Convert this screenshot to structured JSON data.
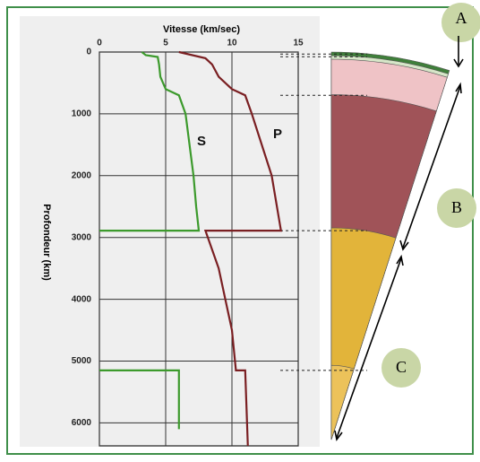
{
  "chart_data": {
    "type": "line",
    "title": "Vitesse (km/sec)",
    "y_label": "Profondeur (km)",
    "xlim": [
      0,
      15
    ],
    "ylim": [
      0,
      6371
    ],
    "y_inverted": true,
    "xticks": [
      0,
      5,
      10,
      15
    ],
    "yticks": [
      0,
      1000,
      2000,
      3000,
      4000,
      5000,
      6000
    ],
    "grid": true,
    "series": [
      {
        "name": "S",
        "color": "#3c9a2c",
        "x": [
          3.2,
          3.5,
          4.4,
          4.5,
          4.6,
          5.0,
          6.0,
          6.5,
          6.8,
          7.1,
          7.3,
          7.5,
          0,
          null,
          0,
          6,
          6
        ],
        "values": [
          0,
          50,
          80,
          200,
          400,
          600,
          700,
          1000,
          1500,
          2000,
          2500,
          2890,
          2890,
          null,
          5150,
          5150,
          6100
        ]
      },
      {
        "name": "P",
        "color": "#7a1f22",
        "x": [
          6.0,
          8.0,
          8.5,
          9.0,
          10.0,
          11.0,
          11.5,
          13.0,
          13.7,
          8.0,
          9.0,
          10.0,
          10.3,
          11.0,
          11.2
        ],
        "values": [
          0,
          100,
          200,
          400,
          600,
          700,
          1000,
          2000,
          2890,
          2890,
          3500,
          4500,
          5150,
          5150,
          6371
        ]
      }
    ],
    "annotations": [
      "A",
      "B",
      "C"
    ]
  }
}
